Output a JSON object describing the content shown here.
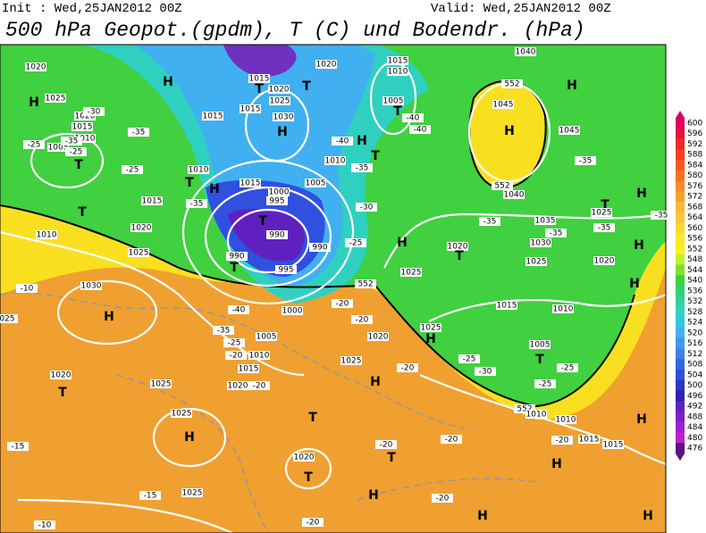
{
  "header": {
    "init": "Init : Wed,25JAN2012 00Z",
    "valid": "Valid: Wed,25JAN2012 00Z",
    "title": "500 hPa Geopot.(gpdm), T (C) und Bodendr. (hPa)"
  },
  "colorbar": {
    "labels": [
      600,
      596,
      592,
      588,
      584,
      580,
      576,
      572,
      568,
      564,
      560,
      556,
      552,
      548,
      544,
      540,
      536,
      532,
      528,
      524,
      520,
      516,
      512,
      508,
      504,
      500,
      496,
      492,
      488,
      484,
      480,
      476
    ],
    "colors": [
      "#e00060",
      "#e8103c",
      "#f02828",
      "#f84020",
      "#f85820",
      "#f87020",
      "#f88828",
      "#f8a030",
      "#f8b838",
      "#f8c838",
      "#f8d830",
      "#f8e828",
      "#f8f020",
      "#c0f030",
      "#80e030",
      "#40d040",
      "#30d070",
      "#30d0a0",
      "#30d0c8",
      "#30c8e0",
      "#40b0f0",
      "#4098f0",
      "#4080e8",
      "#3068e0",
      "#3050d8",
      "#2838c8",
      "#3020b0",
      "#6020c0",
      "#8020c8",
      "#a020d0",
      "#c020c8",
      "#601080"
    ]
  },
  "map": {
    "labels": [
      "H",
      "1020",
      "1025",
      "1020",
      "1015",
      "1010",
      "1005",
      "-25",
      "-25",
      "T",
      "T",
      "-25",
      "1010",
      "1015",
      "1020",
      "1025",
      "-35",
      "H",
      "1015",
      "1020",
      "1025",
      "1015",
      "1015",
      "1030",
      "H",
      "T",
      "T",
      "1020",
      "1015",
      "1010",
      "T",
      "1005",
      "-40",
      "-40",
      "H",
      "-40",
      "T",
      "1010",
      "-35",
      "1010",
      "T",
      "H",
      "-35",
      "1015",
      "1005",
      "1000",
      "995",
      "T",
      "990",
      "990",
      "995",
      "990",
      "T",
      "-30",
      "-25",
      "1000",
      "-40",
      "-35",
      "-25",
      "-20",
      "1005",
      "1010",
      "1015",
      "1020",
      "-20",
      "552",
      "-20",
      "-20",
      "1020",
      "1025",
      "H",
      "-20",
      "-25",
      "H",
      "1025",
      "1025",
      "H",
      "1015",
      "1010",
      "1005",
      "T",
      "-25",
      "-25",
      "-30",
      "1020",
      "T",
      "1025",
      "1030",
      "-35",
      "1035",
      "-35",
      "1040",
      "552",
      "H",
      "1045",
      "552",
      "H",
      "1045",
      "-35",
      "T",
      "1025",
      "-35",
      "H",
      "-35",
      "H",
      "1020",
      "H",
      "552",
      "1010",
      "1010",
      "1015",
      "1015",
      "-20",
      "H",
      "H",
      "H",
      "H",
      "-20",
      "-20",
      "-20",
      "T",
      "H",
      "T",
      "1020",
      "T",
      "1025",
      "H",
      "1025",
      "-15",
      "-15",
      "-10",
      "-20",
      "1020",
      "T",
      "1025",
      "-10",
      "1030",
      "H",
      "025",
      "1040",
      "-30",
      "-35"
    ]
  }
}
